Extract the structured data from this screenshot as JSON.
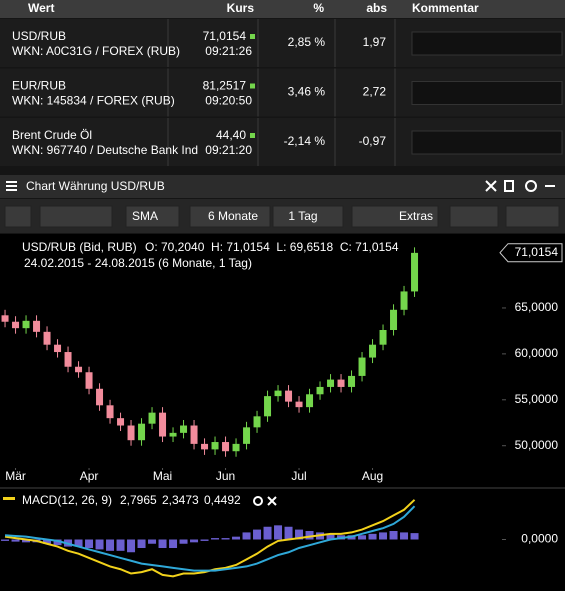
{
  "table": {
    "headers": [
      "Wert",
      "Kurs",
      "%",
      "abs",
      "Kommentar"
    ],
    "rows": [
      {
        "name": "USD/RUB",
        "wkn": "WKN: A0C31G / FOREX (RUB)",
        "price": "71,0154",
        "time": "09:21:26",
        "pct": "2,85 %",
        "abs": "1,97"
      },
      {
        "name": "EUR/RUB",
        "wkn": "WKN: 145834 / FOREX (RUB)",
        "price": "81,2517",
        "time": "09:20:50",
        "pct": "3,46 %",
        "abs": "2,72"
      },
      {
        "name": "Brent Crude Öl",
        "wkn": "WKN: 967740 / Deutsche Bank Ind",
        "price": "44,40",
        "time": "09:21:20",
        "pct": "-2,14 %",
        "abs": "-0,97"
      }
    ]
  },
  "panel": {
    "title": "Chart Währung USD/RUB"
  },
  "toolbar": {
    "indicator": "SMA",
    "range": "6 Monate",
    "interval": "1 Tag",
    "extras": "Extras"
  },
  "chart": {
    "type": "candlestick",
    "instrument": "USD/RUB (Bid, RUB)",
    "ohlc_label": "O: 70,2040  H: 71,0154  L: 69,6518  C: 71,0154",
    "period": "24.02.2015 - 24.08.2015 (6 Monate, 1 Tag)",
    "last_price": {
      "value": 71.0154,
      "label": "71,0154"
    },
    "ylim": [
      47.9,
      72.4
    ],
    "yticks": [
      {
        "value": 50,
        "label": "50,0000"
      },
      {
        "value": 55,
        "label": "55,0000"
      },
      {
        "value": 60,
        "label": "60,0000"
      },
      {
        "value": 65,
        "label": "65,0000"
      }
    ],
    "xlim": [
      -0.48,
      47.14
    ],
    "xticks": [
      {
        "value": 1,
        "label": "Mär"
      },
      {
        "value": 8,
        "label": "Apr"
      },
      {
        "value": 15,
        "label": "Mai"
      },
      {
        "value": 21,
        "label": "Jun"
      },
      {
        "value": 28,
        "label": "Jul"
      },
      {
        "value": 35,
        "label": "Aug"
      }
    ],
    "up_color": "#74d64c",
    "down_color": "#f28c9c",
    "open": [
      64.2,
      63.5,
      62.8,
      63.6,
      62.4,
      61.0,
      60.2,
      58.6,
      58.0,
      56.2,
      54.4,
      53.0,
      52.2,
      50.6,
      52.4,
      53.6,
      51.0,
      51.4,
      52.2,
      50.2,
      49.6,
      50.4,
      49.4,
      50.2,
      52.0,
      53.2,
      55.4,
      56.0,
      54.8,
      54.2,
      55.6,
      56.4,
      57.2,
      56.4,
      57.6,
      59.6,
      61.0,
      62.6,
      64.8,
      66.8
    ],
    "high": [
      64.8,
      64.1,
      64.2,
      64.2,
      63.0,
      61.6,
      60.8,
      59.2,
      58.6,
      56.8,
      55.0,
      53.6,
      52.8,
      53.0,
      54.2,
      54.2,
      52.0,
      52.8,
      52.8,
      50.8,
      51.0,
      51.0,
      50.8,
      52.6,
      53.8,
      56.0,
      56.6,
      56.6,
      55.4,
      56.2,
      57.0,
      57.8,
      57.8,
      58.2,
      60.2,
      61.6,
      63.2,
      65.4,
      67.4,
      71.6
    ],
    "low": [
      62.9,
      62.2,
      62.2,
      61.8,
      60.4,
      59.6,
      58.0,
      57.4,
      55.6,
      53.8,
      52.4,
      51.6,
      50.0,
      50.0,
      51.8,
      50.4,
      50.4,
      50.8,
      49.6,
      49.0,
      49.0,
      48.8,
      48.8,
      49.6,
      51.4,
      52.6,
      54.8,
      54.2,
      53.6,
      53.6,
      55.0,
      55.8,
      55.8,
      55.8,
      57.0,
      59.0,
      60.4,
      62.0,
      64.2,
      66.2
    ],
    "close": [
      63.5,
      62.8,
      63.6,
      62.4,
      61.0,
      60.2,
      58.6,
      58.0,
      56.2,
      54.4,
      53.0,
      52.2,
      50.6,
      52.4,
      53.6,
      51.0,
      51.4,
      52.2,
      50.2,
      49.6,
      50.4,
      49.4,
      50.2,
      52.0,
      53.2,
      55.4,
      56.0,
      54.8,
      54.2,
      55.6,
      56.4,
      57.2,
      56.4,
      57.6,
      59.6,
      61.0,
      62.6,
      64.8,
      66.8,
      71.0
    ]
  },
  "macd": {
    "type": "line",
    "title": "MACD(12, 26, 9)",
    "ylim": [
      -3,
      3
    ],
    "yticks": [
      {
        "value": 0,
        "label": "0,0000"
      }
    ],
    "series": [
      {
        "color": "#f2d21b",
        "label": "2,7965",
        "values": [
          0.2,
          0.1,
          0.0,
          -0.1,
          -0.3,
          -0.5,
          -0.8,
          -1.0,
          -1.3,
          -1.6,
          -1.9,
          -2.1,
          -2.4,
          -2.3,
          -2.1,
          -2.5,
          -2.6,
          -2.4,
          -2.4,
          -2.3,
          -2.1,
          -2.0,
          -1.8,
          -1.4,
          -1.0,
          -0.5,
          -0.1,
          0.0,
          0.1,
          0.2,
          0.3,
          0.4,
          0.4,
          0.5,
          0.7,
          1.0,
          1.3,
          1.7,
          2.1,
          2.8
        ]
      },
      {
        "color": "#2fa8d8",
        "label": "2,3473",
        "values": [
          0.3,
          0.25,
          0.2,
          0.1,
          0.0,
          -0.1,
          -0.3,
          -0.5,
          -0.7,
          -0.9,
          -1.1,
          -1.3,
          -1.5,
          -1.7,
          -1.8,
          -1.9,
          -2.0,
          -2.1,
          -2.2,
          -2.2,
          -2.2,
          -2.1,
          -2.0,
          -1.9,
          -1.7,
          -1.4,
          -1.1,
          -0.9,
          -0.6,
          -0.4,
          -0.2,
          0.0,
          0.1,
          0.2,
          0.4,
          0.6,
          0.8,
          1.1,
          1.6,
          2.35
        ]
      }
    ],
    "histogram": {
      "color": "#6b5fd0",
      "label": "0,4492",
      "values": [
        -0.1,
        -0.15,
        -0.2,
        -0.2,
        -0.3,
        -0.4,
        -0.5,
        -0.5,
        -0.6,
        -0.7,
        -0.8,
        -0.8,
        -0.9,
        -0.6,
        -0.3,
        -0.6,
        -0.6,
        -0.3,
        -0.2,
        -0.1,
        0.1,
        0.1,
        0.2,
        0.5,
        0.7,
        0.9,
        1.0,
        0.9,
        0.7,
        0.6,
        0.5,
        0.4,
        0.3,
        0.3,
        0.3,
        0.4,
        0.5,
        0.6,
        0.5,
        0.45
      ]
    }
  }
}
